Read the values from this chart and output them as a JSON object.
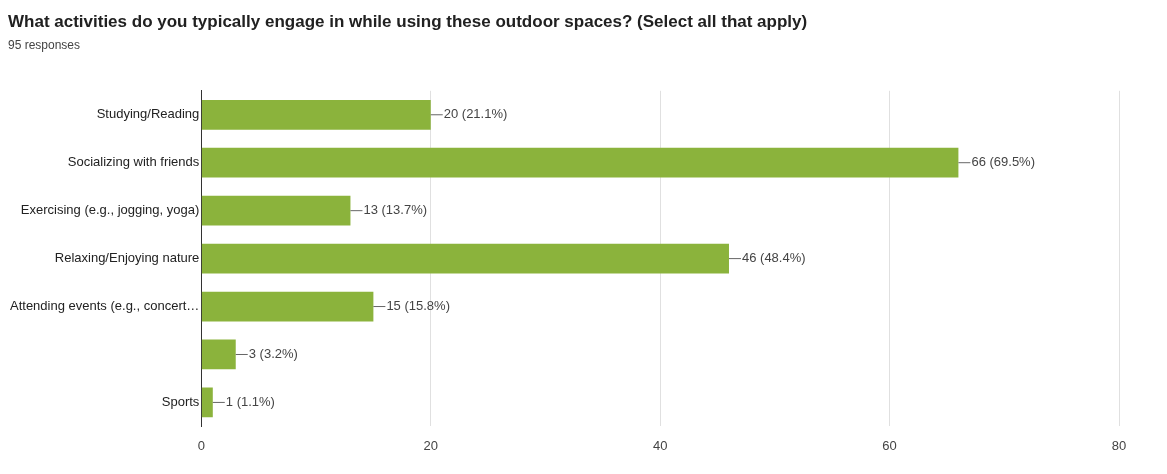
{
  "chart_data": {
    "type": "bar",
    "orientation": "horizontal",
    "title": "What activities do you typically engage in while using these outdoor spaces? (Select all that apply)",
    "subtitle": "95 responses",
    "categories": [
      "Studying/Reading",
      "Socializing with friends",
      "Exercising (e.g., jogging, yoga)",
      "Relaxing/Enjoying nature",
      "Attending events (e.g., concert…",
      null,
      "Sports"
    ],
    "values": [
      20,
      66,
      13,
      46,
      15,
      3,
      1
    ],
    "value_labels": [
      "20 (21.1%)",
      "66 (69.5%)",
      "13 (13.7%)",
      "46 (48.4%)",
      "15 (15.8%)",
      "3 (3.2%)",
      "1 (1.1%)"
    ],
    "color": "#8bb33c",
    "xlim": [
      0,
      80
    ],
    "xticks": [
      0,
      20,
      40,
      60,
      80
    ],
    "grid": "x",
    "legend": false
  }
}
